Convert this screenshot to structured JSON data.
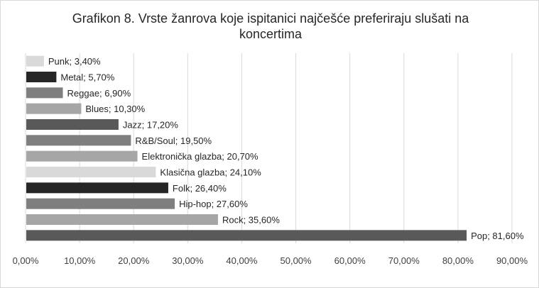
{
  "chart_data": {
    "type": "bar",
    "orientation": "horizontal",
    "title": "Grafikon 8. Vrste žanrova koje ispitanici najčešće preferiraju slušati na koncertima",
    "xlim": [
      0,
      90
    ],
    "x_ticks": [
      "0,00%",
      "10,00%",
      "20,00%",
      "30,00%",
      "40,00%",
      "50,00%",
      "60,00%",
      "70,00%",
      "80,00%",
      "90,00%"
    ],
    "grid": true,
    "legend": "none",
    "categories": [
      "Punk",
      "Metal",
      "Reggae",
      "Blues",
      "Jazz",
      "R&B/Soul",
      "Elektronička glazba",
      "Klasična glazba",
      "Folk",
      "Hip-hop",
      "Rock",
      "Pop"
    ],
    "values": [
      3.4,
      5.7,
      6.9,
      10.3,
      17.2,
      19.5,
      20.7,
      24.1,
      26.4,
      27.6,
      35.6,
      81.6
    ],
    "data_labels": [
      "Punk; 3,40%",
      "Metal; 5,70%",
      "Reggae; 6,90%",
      "Blues; 10,30%",
      "Jazz; 17,20%",
      "R&B/Soul; 19,50%",
      "Elektronička glazba; 20,70%",
      "Klasična glazba; 24,10%",
      "Folk; 26,40%",
      "Hip-hop; 27,60%",
      "Rock; 35,60%",
      "Pop; 81,60%"
    ],
    "colors": [
      "#d9d9d9",
      "#262626",
      "#7f7f7f",
      "#a6a6a6",
      "#595959",
      "#7f7f7f",
      "#a6a6a6",
      "#d9d9d9",
      "#262626",
      "#7f7f7f",
      "#a6a6a6",
      "#595959"
    ]
  }
}
